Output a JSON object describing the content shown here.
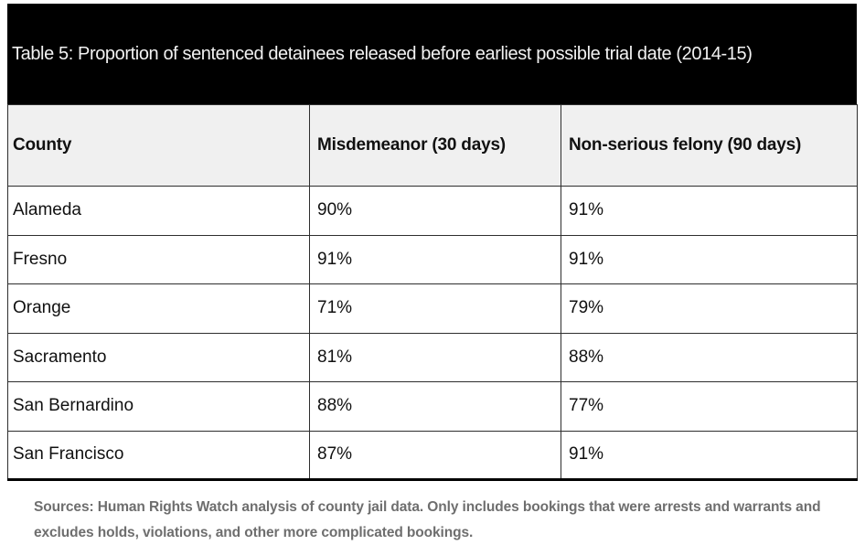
{
  "title": "Table 5: Proportion of sentenced detainees released before earliest possible trial date (2014-15)",
  "table": {
    "headers": [
      "County",
      "Misdemeanor (30 days)",
      "Non-serious felony (90 days)"
    ],
    "rows": [
      {
        "county": "Alameda",
        "misdemeanor": "90%",
        "felony": "91%"
      },
      {
        "county": "Fresno",
        "misdemeanor": "91%",
        "felony": "91%"
      },
      {
        "county": "Orange",
        "misdemeanor": "71%",
        "felony": "79%"
      },
      {
        "county": "Sacramento",
        "misdemeanor": "81%",
        "felony": "88%"
      },
      {
        "county": "San Bernardino",
        "misdemeanor": "88%",
        "felony": "77%"
      },
      {
        "county": "San Francisco",
        "misdemeanor": "87%",
        "felony": "91%"
      }
    ]
  },
  "footer": {
    "note": "Sources: Human Rights Watch analysis of county jail data. Only includes bookings that were arrests and warrants and excludes holds, violations, and other more complicated bookings."
  },
  "colors": {
    "title_band_bg": "#000000",
    "title_text": "#f2f2f2",
    "header_row_bg": "#f0f0f0",
    "grid_line": "#2e2e2e",
    "bottom_rule": "#000000",
    "body_text": "#111111",
    "source_note_text": "#6e6e6e",
    "page_bg": "#ffffff"
  },
  "chart_data": {
    "type": "table",
    "title": "Table 5: Proportion of sentenced detainees released before earliest possible trial date (2014-15)",
    "columns": [
      "County",
      "Misdemeanor (30 days)",
      "Non-serious felony (90 days)"
    ],
    "categories": [
      "Alameda",
      "Fresno",
      "Orange",
      "Sacramento",
      "San Bernardino",
      "San Francisco"
    ],
    "series": [
      {
        "name": "Misdemeanor (30 days)",
        "values": [
          90,
          91,
          71,
          81,
          88,
          87
        ],
        "unit": "%"
      },
      {
        "name": "Non-serious felony (90 days)",
        "values": [
          91,
          91,
          79,
          88,
          77,
          91
        ],
        "unit": "%"
      }
    ],
    "source_note": "Sources: Human Rights Watch analysis of county jail data. Only includes bookings that were arrests and warrants and excludes holds, violations, and other more complicated bookings."
  }
}
